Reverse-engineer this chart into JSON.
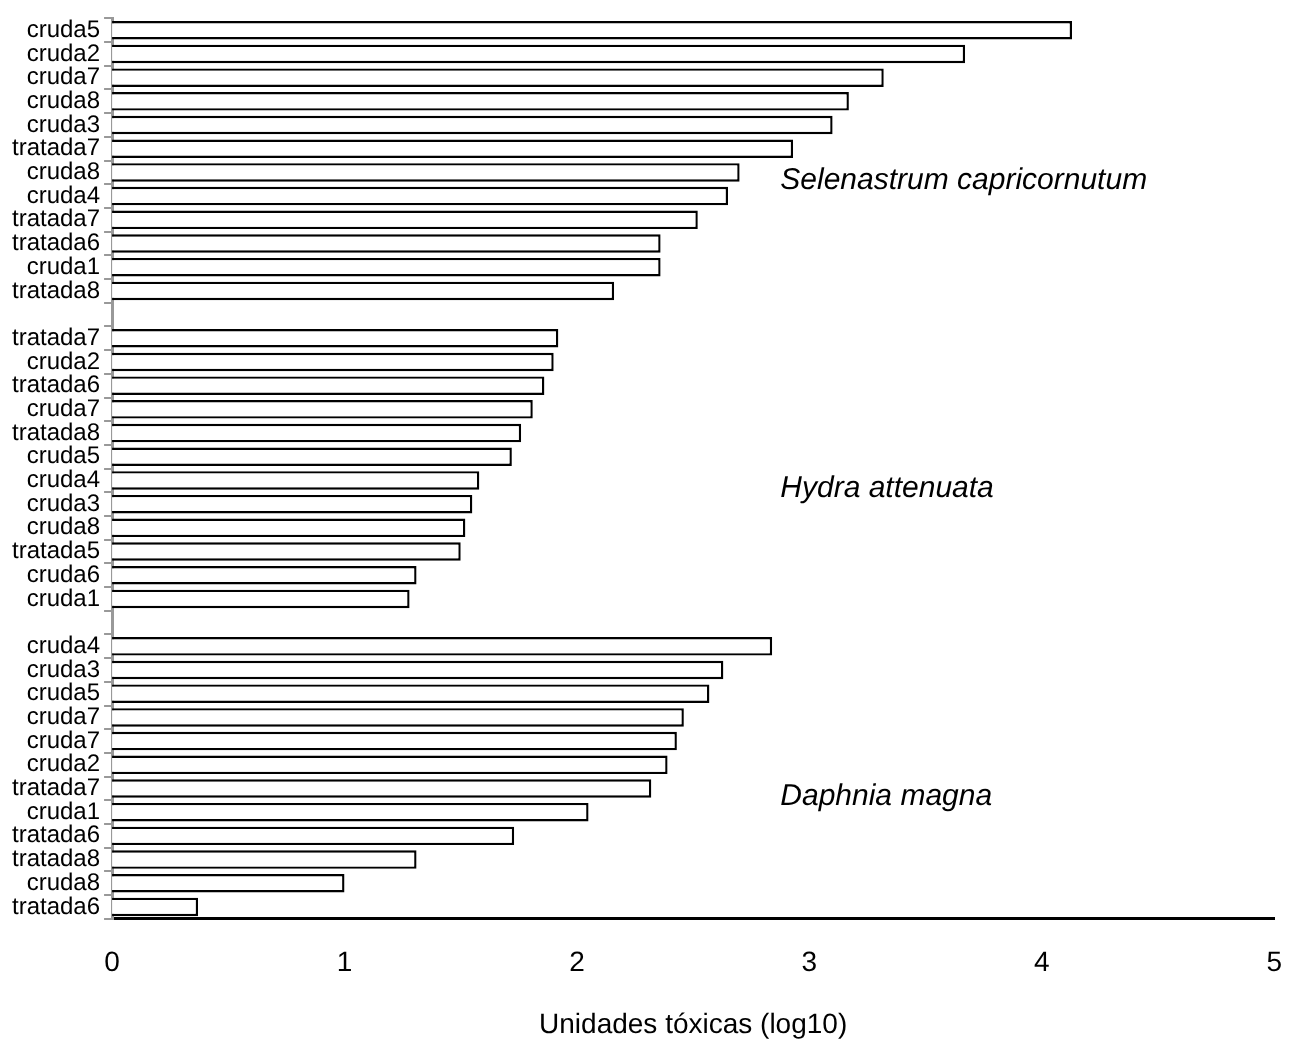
{
  "chart_data": {
    "type": "bar",
    "orientation": "horizontal",
    "xlabel": "Unidades tóxicas (log10)",
    "categories": [
      "cruda5",
      "cruda2",
      "cruda7",
      "cruda8",
      "cruda3",
      "tratada7",
      "cruda8",
      "cruda4",
      "tratada7",
      "tratada6",
      "cruda1",
      "tratada8",
      null,
      "tratada7",
      "cruda2",
      "tratada6",
      "cruda7",
      "tratada8",
      "cruda5",
      "cruda4",
      "cruda3",
      "cruda8",
      "tratada5",
      "cruda6",
      "cruda1",
      null,
      "cruda4",
      "cruda3",
      "cruda5",
      "cruda7",
      "cruda7",
      "cruda2",
      "tratada7",
      "cruda1",
      "tratada6",
      "tratada8",
      "cruda8",
      "tratada6"
    ],
    "values": [
      4.13,
      3.67,
      3.32,
      3.17,
      3.1,
      2.93,
      2.7,
      2.65,
      2.52,
      2.36,
      2.36,
      2.16,
      null,
      1.92,
      1.9,
      1.86,
      1.81,
      1.76,
      1.72,
      1.58,
      1.55,
      1.52,
      1.5,
      1.31,
      1.28,
      null,
      2.84,
      2.63,
      2.57,
      2.46,
      2.43,
      2.39,
      2.32,
      2.05,
      1.73,
      1.31,
      1.0,
      0.37
    ],
    "color": "#ffffff",
    "xlim": [
      0,
      5
    ],
    "xticks": [
      0,
      1,
      2,
      3,
      4,
      5
    ],
    "grid": false,
    "legend": false,
    "annotations": [
      "Selenastrum capricornutum",
      "Hydra attenuata",
      "Daphnia magna"
    ]
  }
}
